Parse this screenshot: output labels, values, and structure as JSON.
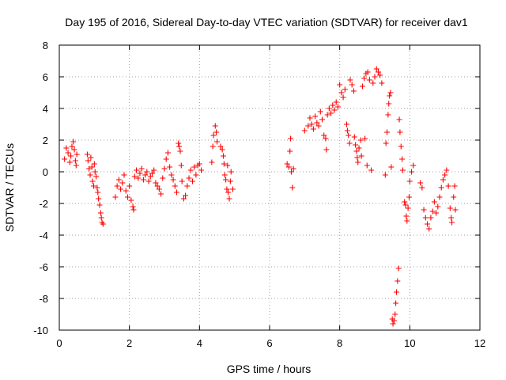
{
  "chart_data": {
    "type": "scatter",
    "title": "Day 195 of 2016, Sidereal Day-to-day VTEC variation (SDTVAR) for receiver dav1",
    "xlabel": "GPS time / hours",
    "ylabel": "SDTVAR / TECUs",
    "xlim": [
      0,
      12
    ],
    "ylim": [
      -10,
      8
    ],
    "xticks": [
      "0",
      "2",
      "4",
      "6",
      "8",
      "10",
      "12"
    ],
    "yticks": [
      "-10",
      "-8",
      "-6",
      "-4",
      "-2",
      "0",
      "2",
      "4",
      "6",
      "8"
    ],
    "grid": true,
    "marker": "+",
    "color": "#ff0000",
    "series": [
      {
        "name": "SDTVAR",
        "points": [
          [
            0.15,
            0.8
          ],
          [
            0.2,
            1.5
          ],
          [
            0.25,
            1.2
          ],
          [
            0.3,
            0.6
          ],
          [
            0.33,
            1.0
          ],
          [
            0.36,
            1.6
          ],
          [
            0.4,
            1.9
          ],
          [
            0.43,
            1.4
          ],
          [
            0.46,
            0.7
          ],
          [
            0.48,
            0.4
          ],
          [
            0.5,
            1.1
          ],
          [
            0.8,
            1.1
          ],
          [
            0.82,
            0.7
          ],
          [
            0.85,
            0.2
          ],
          [
            0.88,
            -0.2
          ],
          [
            0.9,
            0.9
          ],
          [
            0.93,
            0.3
          ],
          [
            0.95,
            -0.6
          ],
          [
            0.98,
            -0.9
          ],
          [
            1.0,
            0.5
          ],
          [
            1.02,
            0.0
          ],
          [
            1.05,
            -0.3
          ],
          [
            1.08,
            -1.0
          ],
          [
            1.1,
            -1.3
          ],
          [
            1.12,
            -1.7
          ],
          [
            1.15,
            -2.1
          ],
          [
            1.18,
            -2.6
          ],
          [
            1.2,
            -2.9
          ],
          [
            1.22,
            -3.2
          ],
          [
            1.25,
            -3.3
          ],
          [
            1.6,
            -1.6
          ],
          [
            1.65,
            -0.9
          ],
          [
            1.7,
            -0.5
          ],
          [
            1.75,
            -1.1
          ],
          [
            1.8,
            -0.7
          ],
          [
            1.85,
            -0.2
          ],
          [
            1.9,
            -1.2
          ],
          [
            1.95,
            -1.6
          ],
          [
            2.0,
            -0.9
          ],
          [
            2.05,
            -1.8
          ],
          [
            2.1,
            -2.2
          ],
          [
            2.12,
            -2.4
          ],
          [
            2.15,
            -0.3
          ],
          [
            2.2,
            0.1
          ],
          [
            2.25,
            -0.4
          ],
          [
            2.3,
            -0.1
          ],
          [
            2.35,
            0.2
          ],
          [
            2.4,
            -0.5
          ],
          [
            2.45,
            -0.2
          ],
          [
            2.5,
            0.0
          ],
          [
            2.55,
            -0.6
          ],
          [
            2.6,
            -0.3
          ],
          [
            2.65,
            -0.1
          ],
          [
            2.7,
            0.1
          ],
          [
            2.75,
            -0.7
          ],
          [
            2.8,
            -0.9
          ],
          [
            2.85,
            -1.1
          ],
          [
            2.9,
            -1.4
          ],
          [
            2.95,
            -0.4
          ],
          [
            3.0,
            0.2
          ],
          [
            3.05,
            0.8
          ],
          [
            3.1,
            1.2
          ],
          [
            3.15,
            0.3
          ],
          [
            3.2,
            -0.2
          ],
          [
            3.25,
            -0.5
          ],
          [
            3.3,
            -0.9
          ],
          [
            3.35,
            -1.3
          ],
          [
            3.4,
            1.8
          ],
          [
            3.42,
            1.6
          ],
          [
            3.45,
            1.3
          ],
          [
            3.48,
            0.4
          ],
          [
            3.5,
            -0.6
          ],
          [
            3.55,
            -1.7
          ],
          [
            3.6,
            -1.5
          ],
          [
            3.65,
            -0.9
          ],
          [
            3.7,
            -0.4
          ],
          [
            3.75,
            0.1
          ],
          [
            3.8,
            -0.6
          ],
          [
            3.85,
            0.3
          ],
          [
            3.9,
            -0.2
          ],
          [
            3.95,
            0.4
          ],
          [
            4.0,
            0.5
          ],
          [
            4.05,
            0.1
          ],
          [
            4.35,
            0.6
          ],
          [
            4.38,
            1.6
          ],
          [
            4.4,
            2.3
          ],
          [
            4.45,
            2.9
          ],
          [
            4.48,
            2.5
          ],
          [
            4.5,
            1.9
          ],
          [
            4.6,
            1.6
          ],
          [
            4.65,
            1.4
          ],
          [
            4.68,
            1.0
          ],
          [
            4.7,
            0.5
          ],
          [
            4.72,
            -0.2
          ],
          [
            4.75,
            -0.5
          ],
          [
            4.78,
            -1.1
          ],
          [
            4.8,
            0.4
          ],
          [
            4.82,
            -1.3
          ],
          [
            4.85,
            -1.7
          ],
          [
            4.88,
            -0.6
          ],
          [
            4.9,
            0.0
          ],
          [
            4.95,
            -1.1
          ],
          [
            6.5,
            0.5
          ],
          [
            6.55,
            0.3
          ],
          [
            6.58,
            1.3
          ],
          [
            6.6,
            2.1
          ],
          [
            6.62,
            0.0
          ],
          [
            6.65,
            -1.0
          ],
          [
            6.68,
            0.2
          ],
          [
            7.0,
            2.6
          ],
          [
            7.1,
            2.9
          ],
          [
            7.15,
            3.4
          ],
          [
            7.2,
            3.0
          ],
          [
            7.25,
            2.7
          ],
          [
            7.3,
            3.5
          ],
          [
            7.35,
            3.1
          ],
          [
            7.4,
            2.9
          ],
          [
            7.45,
            3.8
          ],
          [
            7.5,
            3.3
          ],
          [
            7.55,
            2.3
          ],
          [
            7.6,
            2.1
          ],
          [
            7.62,
            1.4
          ],
          [
            7.65,
            3.6
          ],
          [
            7.7,
            4.0
          ],
          [
            7.75,
            3.7
          ],
          [
            7.8,
            4.2
          ],
          [
            7.85,
            3.9
          ],
          [
            7.9,
            4.4
          ],
          [
            7.95,
            4.1
          ],
          [
            8.0,
            5.5
          ],
          [
            8.05,
            5.0
          ],
          [
            8.1,
            4.7
          ],
          [
            8.15,
            5.2
          ],
          [
            8.2,
            3.0
          ],
          [
            8.22,
            2.6
          ],
          [
            8.25,
            2.3
          ],
          [
            8.28,
            1.8
          ],
          [
            8.3,
            5.8
          ],
          [
            8.35,
            5.5
          ],
          [
            8.4,
            5.1
          ],
          [
            8.42,
            2.2
          ],
          [
            8.45,
            1.7
          ],
          [
            8.48,
            1.3
          ],
          [
            8.5,
            0.9
          ],
          [
            8.52,
            0.6
          ],
          [
            8.55,
            1.5
          ],
          [
            8.6,
            2.0
          ],
          [
            8.62,
            1.0
          ],
          [
            8.65,
            5.4
          ],
          [
            8.7,
            5.9
          ],
          [
            8.72,
            2.1
          ],
          [
            8.75,
            6.2
          ],
          [
            8.78,
            0.4
          ],
          [
            8.8,
            6.3
          ],
          [
            8.85,
            5.8
          ],
          [
            8.9,
            0.1
          ],
          [
            8.95,
            5.6
          ],
          [
            9.0,
            6.0
          ],
          [
            9.05,
            6.5
          ],
          [
            9.1,
            6.3
          ],
          [
            9.15,
            6.1
          ],
          [
            9.2,
            5.6
          ],
          [
            9.3,
            -0.2
          ],
          [
            9.32,
            1.8
          ],
          [
            9.35,
            2.5
          ],
          [
            9.38,
            3.6
          ],
          [
            9.4,
            4.3
          ],
          [
            9.42,
            4.8
          ],
          [
            9.45,
            5.0
          ],
          [
            9.47,
            0.3
          ],
          [
            9.5,
            -9.3
          ],
          [
            9.52,
            -9.6
          ],
          [
            9.55,
            -9.4
          ],
          [
            9.58,
            -9.0
          ],
          [
            9.6,
            -8.3
          ],
          [
            9.62,
            -7.6
          ],
          [
            9.65,
            -6.9
          ],
          [
            9.68,
            -6.1
          ],
          [
            9.7,
            3.3
          ],
          [
            9.72,
            2.5
          ],
          [
            9.75,
            1.6
          ],
          [
            9.78,
            0.8
          ],
          [
            9.8,
            0.1
          ],
          [
            9.85,
            -1.9
          ],
          [
            9.88,
            -2.1
          ],
          [
            9.9,
            -2.8
          ],
          [
            9.92,
            -3.1
          ],
          [
            9.95,
            -2.3
          ],
          [
            9.98,
            -1.6
          ],
          [
            10.0,
            -0.6
          ],
          [
            10.05,
            0.0
          ],
          [
            10.1,
            0.4
          ],
          [
            10.3,
            -0.7
          ],
          [
            10.35,
            -1.0
          ],
          [
            10.4,
            -2.4
          ],
          [
            10.45,
            -2.9
          ],
          [
            10.5,
            -3.3
          ],
          [
            10.55,
            -3.6
          ],
          [
            10.6,
            -2.9
          ],
          [
            10.65,
            -2.5
          ],
          [
            10.7,
            -1.9
          ],
          [
            10.75,
            -2.6
          ],
          [
            10.8,
            -2.2
          ],
          [
            10.85,
            -1.6
          ],
          [
            10.9,
            -1.0
          ],
          [
            10.95,
            -0.5
          ],
          [
            11.0,
            -0.2
          ],
          [
            11.05,
            0.1
          ],
          [
            11.1,
            -0.9
          ],
          [
            11.15,
            -2.3
          ],
          [
            11.18,
            -2.9
          ],
          [
            11.2,
            -3.2
          ],
          [
            11.25,
            -1.6
          ],
          [
            11.28,
            -0.9
          ],
          [
            11.3,
            -2.4
          ]
        ]
      }
    ]
  }
}
